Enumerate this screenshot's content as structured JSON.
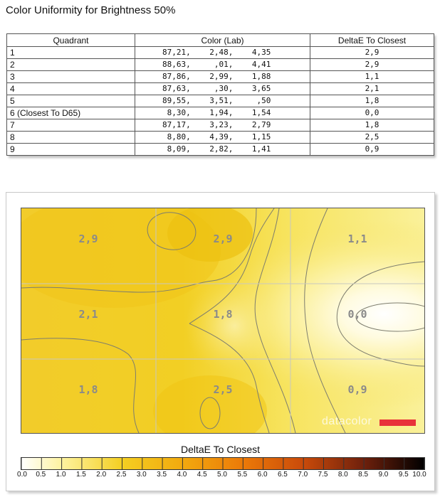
{
  "title": "Color Uniformity for Brightness 50%",
  "table": {
    "headers": [
      "Quadrant",
      "Color (Lab)",
      "DeltaE To Closest"
    ],
    "rows": [
      {
        "quadrant": "1",
        "lab": "87,21,    2,48,    4,35",
        "de": "2,9"
      },
      {
        "quadrant": "2",
        "lab": "88,63,     ,01,    4,41",
        "de": "2,9"
      },
      {
        "quadrant": "3",
        "lab": "87,86,    2,99,    1,88",
        "de": "1,1"
      },
      {
        "quadrant": "4",
        "lab": "87,63,     ,30,    3,65",
        "de": "2,1"
      },
      {
        "quadrant": "5",
        "lab": "89,55,    3,51,     ,50",
        "de": "1,8"
      },
      {
        "quadrant": "6 (Closest To D65)",
        "lab": " 8,30,    1,94,    1,54",
        "de": "0,0"
      },
      {
        "quadrant": "7",
        "lab": "87,17,    3,23,    2,79",
        "de": "1,8"
      },
      {
        "quadrant": "8",
        "lab": " 8,80,    4,39,    1,15",
        "de": "2,5"
      },
      {
        "quadrant": "9",
        "lab": " 8,09,    2,82,    1,41",
        "de": "0,9"
      }
    ]
  },
  "heatmap": {
    "grid_labels": [
      [
        "2,9",
        "2,9",
        "1,1"
      ],
      [
        "2,1",
        "1,8",
        "0,0"
      ],
      [
        "1,8",
        "2,5",
        "0,9"
      ]
    ],
    "logo_text": "datacolor",
    "logo_color": "#e8313a"
  },
  "legend": {
    "title": "DeltaE To Closest",
    "ticks": [
      "0.0",
      "0.5",
      "1.0",
      "1.5",
      "2.0",
      "2.5",
      "3.0",
      "3.5",
      "4.0",
      "4.5",
      "5.0",
      "5.5",
      "6.0",
      "6.5",
      "7.0",
      "7.5",
      "8.0",
      "8.5",
      "9.0",
      "9.5",
      "10.0"
    ]
  },
  "colors": {
    "heat_low": "#ffffff",
    "heat_mid": "#f7dc3c",
    "heat_high": "#e8b400",
    "scale_end": "#000000"
  }
}
